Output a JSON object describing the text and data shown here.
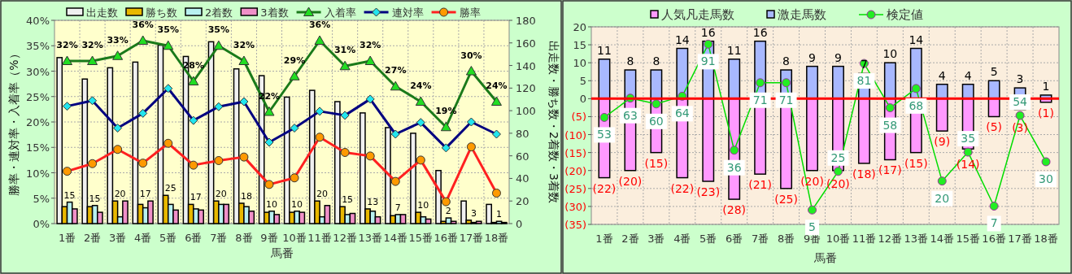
{
  "chart_data": [
    {
      "type": "bar",
      "xlabel": "馬番",
      "ylabel": "勝率・連対率・入着率（%）",
      "y2label": "出走数・勝ち数・2着数・3着数",
      "categories": [
        "1番",
        "2番",
        "3番",
        "4番",
        "5番",
        "6番",
        "7番",
        "8番",
        "9番",
        "10番",
        "11番",
        "12番",
        "13番",
        "14番",
        "15番",
        "16番",
        "17番",
        "18番"
      ],
      "ylim": [
        0,
        40
      ],
      "yticks": [
        {
          "value": 0,
          "label": "0%"
        },
        {
          "value": 5,
          "label": "5%"
        },
        {
          "value": 10,
          "label": "10%"
        },
        {
          "value": 15,
          "label": "15%"
        },
        {
          "value": 20,
          "label": "20%"
        },
        {
          "value": 25,
          "label": "25%"
        },
        {
          "value": 30,
          "label": "30%"
        },
        {
          "value": 35,
          "label": "35%"
        },
        {
          "value": 40,
          "label": "40%"
        }
      ],
      "y2lim": [
        0,
        180
      ],
      "y2ticks": [
        0,
        20,
        40,
        60,
        80,
        100,
        120,
        140,
        160,
        180
      ],
      "grid": true,
      "legend": "top",
      "series": [
        {
          "name": "出走数",
          "axis": "y2",
          "color": "#f0f0f0",
          "values": [
            147,
            128,
            138,
            143,
            158,
            148,
            161,
            137,
            131,
            112,
            118,
            108,
            98,
            85,
            80,
            47,
            20,
            17
          ]
        },
        {
          "name": "勝ち数",
          "axis": "y2",
          "color": "#e8b800",
          "values": [
            15,
            15,
            20,
            17,
            25,
            17,
            20,
            18,
            10,
            10,
            20,
            15,
            13,
            7,
            10,
            2,
            3,
            1
          ],
          "data_labels": true
        },
        {
          "name": "2着数",
          "axis": "y2",
          "color": "#b8f0f0",
          "values": [
            19,
            16,
            6,
            14,
            17,
            13,
            17,
            15,
            11,
            11,
            6,
            8,
            11,
            8,
            6,
            5,
            1,
            2
          ]
        },
        {
          "name": "3着数",
          "axis": "y2",
          "color": "#f090c8",
          "values": [
            13,
            10,
            20,
            20,
            12,
            12,
            17,
            11,
            8,
            10,
            16,
            9,
            6,
            8,
            4,
            2,
            2,
            1
          ]
        },
        {
          "name": "入着率",
          "type": "line",
          "color": "#1a7a1a",
          "marker": "triangle",
          "values": [
            32,
            32,
            33,
            36,
            35,
            28,
            35,
            32,
            22,
            29,
            36,
            31,
            32,
            27,
            24,
            19,
            30,
            24
          ],
          "value_labels": [
            "32%",
            "32%",
            "33%",
            "36%",
            "35%",
            "28%",
            "35%",
            "32%",
            "22%",
            "29%",
            "36%",
            "31%",
            "32%",
            "27%",
            "24%",
            "19%",
            "30%",
            "24%"
          ]
        },
        {
          "name": "連対率",
          "type": "line",
          "color": "#000080",
          "marker": "diamond",
          "values": [
            23.1,
            24.2,
            18.8,
            21.7,
            26.6,
            20.3,
            23.0,
            24.0,
            16.0,
            18.8,
            22.1,
            21.3,
            24.5,
            17.6,
            19.9,
            14.9,
            20.0,
            17.6
          ]
        },
        {
          "name": "勝率",
          "type": "line",
          "color": "#ff2020",
          "marker": "circle",
          "values": [
            10.3,
            11.8,
            14.6,
            11.9,
            15.8,
            11.5,
            12.4,
            13.1,
            7.7,
            9.0,
            17.0,
            14.0,
            13.3,
            8.3,
            12.5,
            4.3,
            15.1,
            6.0
          ]
        }
      ]
    },
    {
      "type": "bar",
      "stacked": true,
      "xlabel": "馬番",
      "categories": [
        "1番",
        "2番",
        "3番",
        "4番",
        "5番",
        "6番",
        "7番",
        "8番",
        "9番",
        "10番",
        "11番",
        "12番",
        "13番",
        "14番",
        "15番",
        "16番",
        "17番",
        "18番"
      ],
      "ylim": [
        -35,
        20
      ],
      "yticks": [
        {
          "value": -35,
          "label": "(35)"
        },
        {
          "value": -30,
          "label": "(30)"
        },
        {
          "value": -25,
          "label": "(25)"
        },
        {
          "value": -20,
          "label": "(20)"
        },
        {
          "value": -15,
          "label": "(15)"
        },
        {
          "value": -10,
          "label": "(10)"
        },
        {
          "value": -5,
          "label": "(5)"
        },
        0,
        5,
        10,
        15,
        20
      ],
      "y2lim": [
        -2.5,
        100
      ],
      "grid": true,
      "legend": "top",
      "ref_lines": [
        {
          "axis": "y",
          "value": 0,
          "color": "#ff0000"
        }
      ],
      "series": [
        {
          "name": "人気凡走馬数",
          "color": "#ff99ff",
          "values": [
            -22,
            -20,
            -15,
            -22,
            -23,
            -28,
            -21,
            -25,
            -20,
            -20,
            -18,
            -17,
            -15,
            -9,
            -14,
            -5,
            -3,
            -1
          ],
          "value_labels": [
            "(22)",
            "(20)",
            "(15)",
            "(22)",
            "(23)",
            "(28)",
            "(21)",
            "(25)",
            "(20)",
            "(20)",
            "(18)",
            "(17)",
            "(15)",
            "(9)",
            "(14)",
            "(5)",
            "(3)",
            "(1)"
          ]
        },
        {
          "name": "激走馬数",
          "color": "#a8b8ff",
          "values": [
            11,
            8,
            8,
            14,
            16,
            11,
            16,
            8,
            9,
            9,
            7,
            10,
            14,
            4,
            4,
            5,
            3,
            1
          ],
          "data_labels": true
        },
        {
          "name": "検定値",
          "type": "line",
          "axis": "y2",
          "color": "#00dd00",
          "marker": "circle",
          "values": [
            53,
            63,
            60,
            64,
            91,
            36,
            71,
            71,
            5,
            25,
            81,
            58,
            68,
            20,
            35,
            7,
            54,
            30
          ],
          "data_labels": true
        }
      ]
    }
  ]
}
